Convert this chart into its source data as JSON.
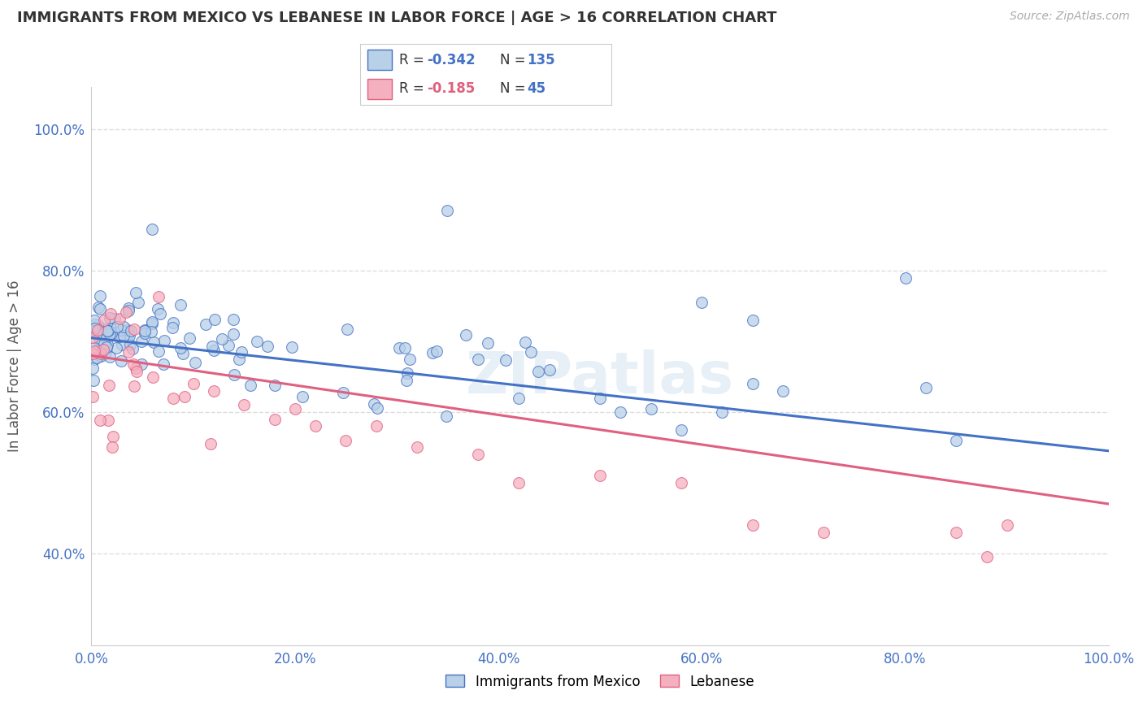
{
  "title": "IMMIGRANTS FROM MEXICO VS LEBANESE IN LABOR FORCE | AGE > 16 CORRELATION CHART",
  "source": "Source: ZipAtlas.com",
  "ylabel": "In Labor Force | Age > 16",
  "xlim": [
    0.0,
    1.0
  ],
  "ylim": [
    0.27,
    1.06
  ],
  "blue_R": -0.342,
  "blue_N": 135,
  "pink_R": -0.185,
  "pink_N": 45,
  "blue_color": "#b8d0e8",
  "pink_color": "#f5b0c0",
  "blue_line_color": "#4472c4",
  "pink_line_color": "#e06080",
  "blue_edge_color": "#4472c4",
  "pink_edge_color": "#e06080",
  "legend_label_blue": "Immigrants from Mexico",
  "legend_label_pink": "Lebanese",
  "watermark": "ZIPatlas",
  "background_color": "#ffffff",
  "grid_color": "#dddddd",
  "title_color": "#333333",
  "axis_label_color": "#555555",
  "tick_color": "#4472c4",
  "xtick_labels": [
    "0.0%",
    "20.0%",
    "40.0%",
    "60.0%",
    "80.0%",
    "100.0%"
  ],
  "xtick_values": [
    0.0,
    0.2,
    0.4,
    0.6,
    0.8,
    1.0
  ],
  "ytick_labels": [
    "40.0%",
    "60.0%",
    "80.0%",
    "100.0%"
  ],
  "ytick_values": [
    0.4,
    0.6,
    0.8,
    1.0
  ],
  "blue_line_y0": 0.705,
  "blue_line_y1": 0.545,
  "pink_line_y0": 0.68,
  "pink_line_y1": 0.47
}
